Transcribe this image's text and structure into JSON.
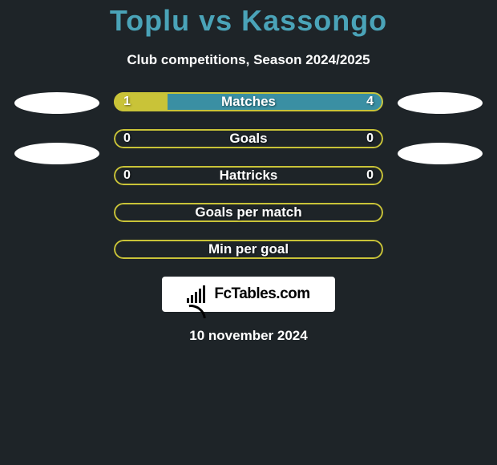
{
  "background_color": "#1e2428",
  "title": {
    "text": "Toplu vs Kassongo",
    "color": "#4aa3b8",
    "fontsize": 36
  },
  "subtitle": {
    "text": "Club competitions, Season 2024/2025",
    "color": "#ffffff",
    "fontsize": 17
  },
  "accent_left_primary": "#c9c338",
  "accent_right_primary": "#3a8fa3",
  "oval_color": "#ffffff",
  "stats": [
    {
      "label": "Matches",
      "left_value": "1",
      "right_value": "4",
      "left_fill_pct": 20,
      "right_fill_pct": 80,
      "left_fill_color": "#c9c338",
      "right_fill_color": "#3a8fa3",
      "border_color": "#c9c338",
      "has_ovals": true
    },
    {
      "label": "Goals",
      "left_value": "0",
      "right_value": "0",
      "left_fill_pct": 0,
      "right_fill_pct": 0,
      "left_fill_color": "#c9c338",
      "right_fill_color": "#3a8fa3",
      "border_color": "#c9c338",
      "has_ovals": true
    },
    {
      "label": "Hattricks",
      "left_value": "0",
      "right_value": "0",
      "left_fill_pct": 0,
      "right_fill_pct": 0,
      "left_fill_color": "#c9c338",
      "right_fill_color": "#3a8fa3",
      "border_color": "#c9c338",
      "has_ovals": false
    },
    {
      "label": "Goals per match",
      "left_value": "",
      "right_value": "",
      "left_fill_pct": 0,
      "right_fill_pct": 0,
      "left_fill_color": "#c9c338",
      "right_fill_color": "#3a8fa3",
      "border_color": "#c9c338",
      "has_ovals": false
    },
    {
      "label": "Min per goal",
      "left_value": "",
      "right_value": "",
      "left_fill_pct": 0,
      "right_fill_pct": 0,
      "left_fill_color": "#c9c338",
      "right_fill_color": "#3a8fa3",
      "border_color": "#c9c338",
      "has_ovals": false
    }
  ],
  "stat_label_color": "#ffffff",
  "stat_value_color": "#ffffff",
  "logo": {
    "bg_color": "#ffffff",
    "text": "FcTables.com"
  },
  "date": {
    "text": "10 november 2024",
    "color": "#ffffff"
  }
}
